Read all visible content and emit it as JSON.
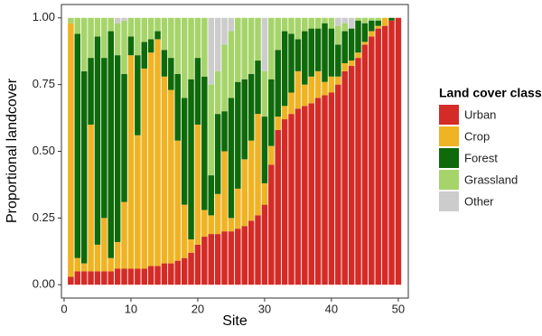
{
  "chart_data": {
    "type": "stacked_bar",
    "x_label": "Site",
    "y_label": "Proportional landcover",
    "x": [
      1,
      2,
      3,
      4,
      5,
      6,
      7,
      8,
      9,
      10,
      11,
      12,
      13,
      14,
      15,
      16,
      17,
      18,
      19,
      20,
      21,
      22,
      23,
      24,
      25,
      26,
      27,
      28,
      29,
      30,
      31,
      32,
      33,
      34,
      35,
      36,
      37,
      38,
      39,
      40,
      41,
      42,
      43,
      44,
      45,
      46,
      47,
      48,
      49,
      50
    ],
    "series": [
      {
        "name": "Urban",
        "color": "#d42b27",
        "values": [
          0.03,
          0.05,
          0.05,
          0.05,
          0.05,
          0.05,
          0.05,
          0.06,
          0.06,
          0.06,
          0.06,
          0.06,
          0.07,
          0.07,
          0.08,
          0.08,
          0.09,
          0.1,
          0.12,
          0.15,
          0.18,
          0.19,
          0.19,
          0.2,
          0.2,
          0.21,
          0.22,
          0.24,
          0.26,
          0.3,
          0.45,
          0.58,
          0.62,
          0.64,
          0.66,
          0.67,
          0.68,
          0.7,
          0.71,
          0.72,
          0.75,
          0.8,
          0.82,
          0.85,
          0.9,
          0.93,
          0.96,
          0.97,
          0.99,
          1.0
        ]
      },
      {
        "name": "Crop",
        "color": "#f0b323",
        "values": [
          0.95,
          0.05,
          0.03,
          0.55,
          0.1,
          0.2,
          0.05,
          0.1,
          0.25,
          0.8,
          0.5,
          0.75,
          0.8,
          0.85,
          0.7,
          0.65,
          0.45,
          0.2,
          0.05,
          0.45,
          0.1,
          0.07,
          0.15,
          0.3,
          0.05,
          0.15,
          0.25,
          0.3,
          0.38,
          0.08,
          0.07,
          0.05,
          0.05,
          0.08,
          0.14,
          0.08,
          0.1,
          0.1,
          0.05,
          0.06,
          0.03,
          0.03,
          0.02,
          0.02,
          0.01,
          0.02,
          0.01,
          0.03,
          0,
          0
        ]
      },
      {
        "name": "Forest",
        "color": "#0f6a0a",
        "values": [
          0,
          0.84,
          0.72,
          0.25,
          0.78,
          0.6,
          0.85,
          0.7,
          0.48,
          0.07,
          0.3,
          0.1,
          0.05,
          0.03,
          0.1,
          0.12,
          0.25,
          0.4,
          0.6,
          0.25,
          0.5,
          0.15,
          0.3,
          0.15,
          0.45,
          0.4,
          0.3,
          0.25,
          0.2,
          0.25,
          0.25,
          0.25,
          0.28,
          0.22,
          0.12,
          0.2,
          0.18,
          0.16,
          0.22,
          0.18,
          0.12,
          0.12,
          0.12,
          0.12,
          0.07,
          0.04,
          0.02,
          0,
          0.01,
          0
        ]
      },
      {
        "name": "Grassland",
        "color": "#a6d46a",
        "values": [
          0.02,
          0.06,
          0.2,
          0.15,
          0.07,
          0.15,
          0.05,
          0.12,
          0.2,
          0.07,
          0.14,
          0.09,
          0.08,
          0.05,
          0.12,
          0.15,
          0.21,
          0.3,
          0.23,
          0.15,
          0.22,
          0.34,
          0.16,
          0.25,
          0.25,
          0.24,
          0.23,
          0.21,
          0.16,
          0.17,
          0.23,
          0.12,
          0.05,
          0.06,
          0.08,
          0.05,
          0.04,
          0.04,
          0.02,
          0.04,
          0.07,
          0.03,
          0,
          0.01,
          0.02,
          0.01,
          0.01,
          0,
          0,
          0
        ]
      },
      {
        "name": "Other",
        "color": "#cccccc",
        "values": [
          0,
          0,
          0,
          0,
          0,
          0,
          0,
          0.02,
          0.01,
          0,
          0,
          0,
          0,
          0,
          0,
          0,
          0,
          0,
          0,
          0,
          0,
          0.25,
          0.2,
          0.1,
          0.05,
          0,
          0,
          0,
          0,
          0.2,
          0,
          0,
          0,
          0,
          0,
          0,
          0,
          0,
          0,
          0,
          0.03,
          0.02,
          0.04,
          0,
          0,
          0,
          0,
          0,
          0,
          0
        ]
      }
    ],
    "xlim": [
      -0.4,
      51.5
    ],
    "xticks": [
      0,
      10,
      20,
      30,
      40,
      50
    ],
    "ylim": [
      -0.05,
      1.05
    ],
    "yticks": [
      {
        "value": 0,
        "label": "0.00"
      },
      {
        "value": 0.25,
        "label": "0.25"
      },
      {
        "value": 0.5,
        "label": "0.50"
      },
      {
        "value": 0.75,
        "label": "0.75"
      },
      {
        "value": 1,
        "label": "1.00"
      }
    ],
    "legend_title": "Land cover class",
    "legend": "right",
    "grid": false
  }
}
